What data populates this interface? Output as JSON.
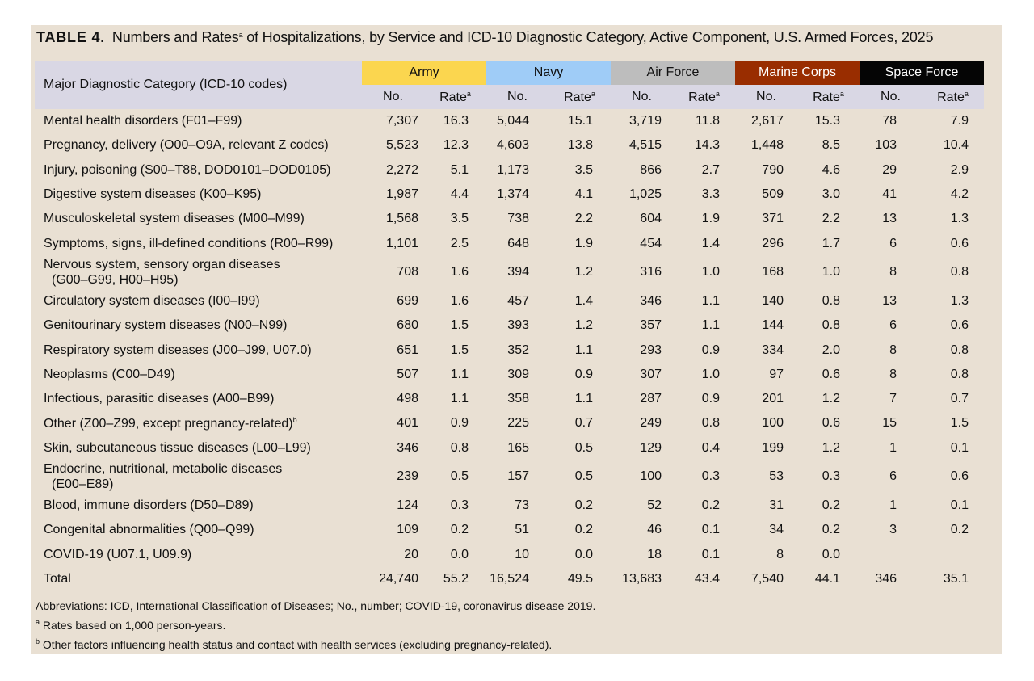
{
  "title": {
    "label": "TABLE 4.",
    "text_before": "Numbers and Rates",
    "sup": "a",
    "text_after": " of Hospitalizations, by Service and ICD-10 Diagnostic Category, Active Component, U.S. Armed Forces, 2025"
  },
  "header": {
    "category": "Major Diagnostic Category (ICD-10 codes)",
    "services": [
      "Army",
      "Navy",
      "Air Force",
      "Marine Corps",
      "Space Force"
    ],
    "no_label": "No.",
    "rate_label": "Rate",
    "rate_sup": "a"
  },
  "rows": [
    {
      "cat": "Mental health disorders (F01–F99)",
      "vals": [
        "7,307",
        "16.3",
        "5,044",
        "15.1",
        "3,719",
        "11.8",
        "2,617",
        "15.3",
        "78",
        "7.9"
      ]
    },
    {
      "cat": "Pregnancy, delivery (O00–O9A, relevant Z codes)",
      "vals": [
        "5,523",
        "12.3",
        "4,603",
        "13.8",
        "4,515",
        "14.3",
        "1,448",
        "8.5",
        "103",
        "10.4"
      ]
    },
    {
      "cat": "Injury, poisoning (S00–T88, DOD0101–DOD0105)",
      "vals": [
        "2,272",
        "5.1",
        "1,173",
        "3.5",
        "866",
        "2.7",
        "790",
        "4.6",
        "29",
        "2.9"
      ]
    },
    {
      "cat": "Digestive system diseases (K00–K95)",
      "vals": [
        "1,987",
        "4.4",
        "1,374",
        "4.1",
        "1,025",
        "3.3",
        "509",
        "3.0",
        "41",
        "4.2"
      ]
    },
    {
      "cat": "Musculoskeletal system diseases (M00–M99)",
      "vals": [
        "1,568",
        "3.5",
        "738",
        "2.2",
        "604",
        "1.9",
        "371",
        "2.2",
        "13",
        "1.3"
      ]
    },
    {
      "cat": "Symptoms, signs, ill-defined conditions (R00–R99)",
      "vals": [
        "1,101",
        "2.5",
        "648",
        "1.9",
        "454",
        "1.4",
        "296",
        "1.7",
        "6",
        "0.6"
      ]
    },
    {
      "cat": "Nervous system, sensory organ diseases",
      "cat2": "(G00–G99, H00–H95)",
      "vals": [
        "708",
        "1.6",
        "394",
        "1.2",
        "316",
        "1.0",
        "168",
        "1.0",
        "8",
        "0.8"
      ]
    },
    {
      "cat": "Circulatory system diseases (I00–I99)",
      "vals": [
        "699",
        "1.6",
        "457",
        "1.4",
        "346",
        "1.1",
        "140",
        "0.8",
        "13",
        "1.3"
      ]
    },
    {
      "cat": "Genitourinary system diseases (N00–N99)",
      "vals": [
        "680",
        "1.5",
        "393",
        "1.2",
        "357",
        "1.1",
        "144",
        "0.8",
        "6",
        "0.6"
      ]
    },
    {
      "cat": "Respiratory system diseases (J00–J99, U07.0)",
      "vals": [
        "651",
        "1.5",
        "352",
        "1.1",
        "293",
        "0.9",
        "334",
        "2.0",
        "8",
        "0.8"
      ]
    },
    {
      "cat": "Neoplasms (C00–D49)",
      "vals": [
        "507",
        "1.1",
        "309",
        "0.9",
        "307",
        "1.0",
        "97",
        "0.6",
        "8",
        "0.8"
      ]
    },
    {
      "cat": "Infectious, parasitic diseases (A00–B99)",
      "vals": [
        "498",
        "1.1",
        "358",
        "1.1",
        "287",
        "0.9",
        "201",
        "1.2",
        "7",
        "0.7"
      ]
    },
    {
      "cat": "Other (Z00–Z99, except pregnancy-related)",
      "cat_sup": "b",
      "vals": [
        "401",
        "0.9",
        "225",
        "0.7",
        "249",
        "0.8",
        "100",
        "0.6",
        "15",
        "1.5"
      ]
    },
    {
      "cat": "Skin, subcutaneous tissue diseases (L00–L99)",
      "vals": [
        "346",
        "0.8",
        "165",
        "0.5",
        "129",
        "0.4",
        "199",
        "1.2",
        "1",
        "0.1"
      ]
    },
    {
      "cat": "Endocrine, nutritional, metabolic diseases",
      "cat2": "(E00–E89)",
      "vals": [
        "239",
        "0.5",
        "157",
        "0.5",
        "100",
        "0.3",
        "53",
        "0.3",
        "6",
        "0.6"
      ]
    },
    {
      "cat": "Blood, immune disorders (D50–D89)",
      "vals": [
        "124",
        "0.3",
        "73",
        "0.2",
        "52",
        "0.2",
        "31",
        "0.2",
        "1",
        "0.1"
      ]
    },
    {
      "cat": "Congenital abnormalities (Q00–Q99)",
      "vals": [
        "109",
        "0.2",
        "51",
        "0.2",
        "46",
        "0.1",
        "34",
        "0.2",
        "3",
        "0.2"
      ]
    },
    {
      "cat": "COVID-19 (U07.1, U09.9)",
      "vals": [
        "20",
        "0.0",
        "10",
        "0.0",
        "18",
        "0.1",
        "8",
        "0.0",
        "",
        ""
      ]
    },
    {
      "cat": "Total",
      "vals": [
        "24,740",
        "55.2",
        "16,524",
        "49.5",
        "13,683",
        "43.4",
        "7,540",
        "44.1",
        "346",
        "35.1"
      ]
    }
  ],
  "notes": {
    "abbrev": "Abbreviations: ICD, International Classification of Diseases; No., number; COVID-19, coronavirus disease 2019.",
    "a_mark": "a",
    "a_text": "Rates based on 1,000 person-years.",
    "b_mark": "b",
    "b_text": "Other factors influencing health status and contact with health services (excluding pregnancy-related)."
  },
  "colors": {
    "panel": "#e9e0d3",
    "header_band": "#d9d7e4",
    "army": "#fbd64f",
    "navy": "#9fccf7",
    "air_force": "#bdbdbd",
    "marine_corps": "#992d00",
    "space_force": "#050505"
  }
}
